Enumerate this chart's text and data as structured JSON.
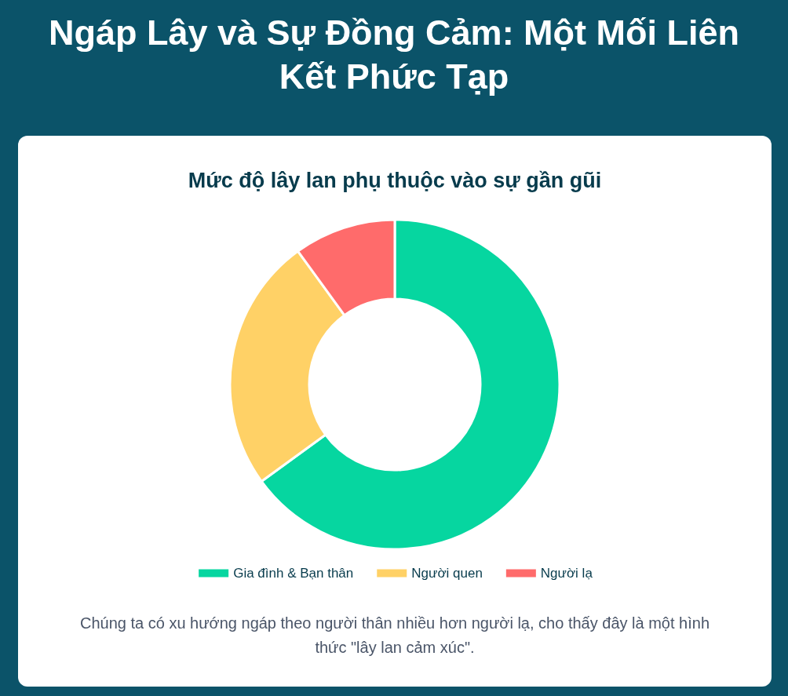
{
  "chart_data": {
    "type": "donut",
    "title": "Ngáp Lây và Sự Đồng Cảm: Một Mối Liên Kết Phức Tạp",
    "subtitle": "Mức độ lây lan phụ thuộc vào sự gần gũi",
    "categories": [
      "Gia đình & Bạn thân",
      "Người quen",
      "Người lạ"
    ],
    "values": [
      65,
      25,
      10
    ],
    "colors": [
      "#06d6a0",
      "#ffd166",
      "#ff6b6b"
    ],
    "legend": "bottom",
    "annotations": [
      "Chúng ta có xu hướng ngáp theo người thân nhiều hơn người lạ, cho thấy đây là một hình thức \"lây lan cảm xúc\"."
    ]
  }
}
